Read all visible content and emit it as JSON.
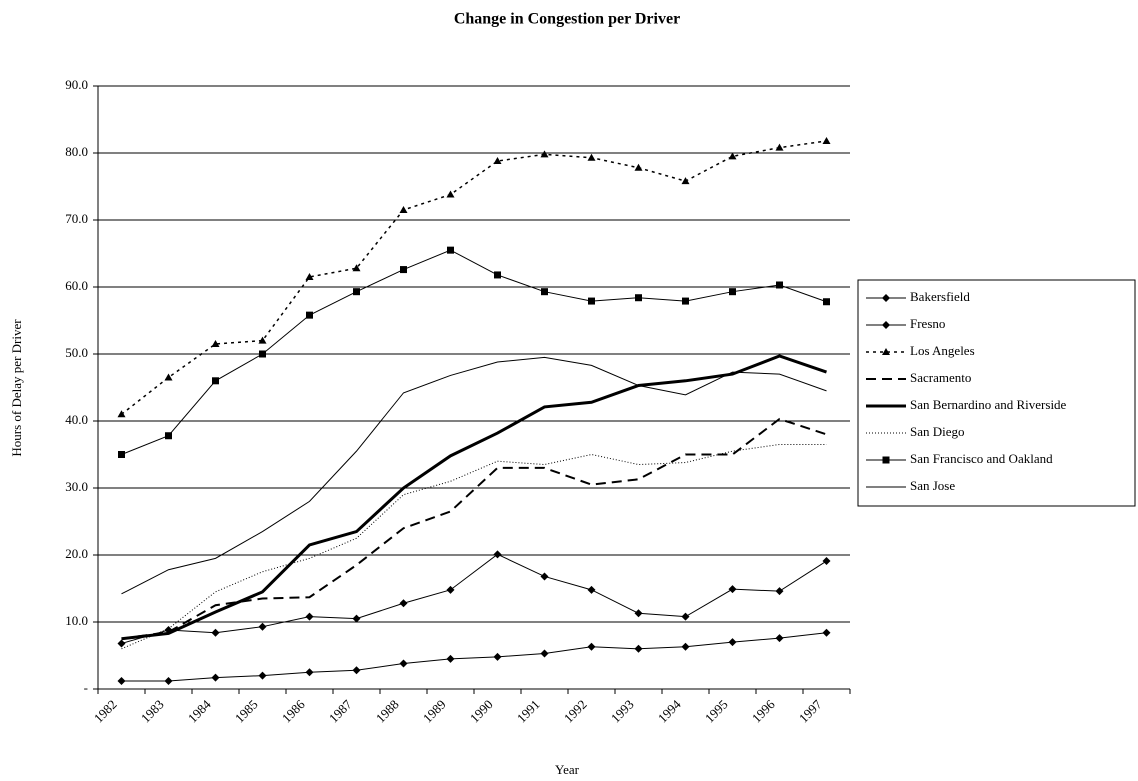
{
  "chart_data": {
    "type": "line",
    "title": "Change in Congestion per Driver",
    "x_label": "Year",
    "y_label": "Hours of Delay per Driver",
    "categories": [
      "1982",
      "1983",
      "1984",
      "1985",
      "1986",
      "1987",
      "1988",
      "1989",
      "1990",
      "1991",
      "1992",
      "1993",
      "1994",
      "1995",
      "1996",
      "1997"
    ],
    "ylim": [
      0,
      90
    ],
    "yticks": [
      {
        "value": 0,
        "label": "-"
      },
      {
        "value": 10,
        "label": "10.0"
      },
      {
        "value": 20,
        "label": "20.0"
      },
      {
        "value": 30,
        "label": "30.0"
      },
      {
        "value": 40,
        "label": "40.0"
      },
      {
        "value": 50,
        "label": "50.0"
      },
      {
        "value": 60,
        "label": "60.0"
      },
      {
        "value": 70,
        "label": "70.0"
      },
      {
        "value": 80,
        "label": "80.0"
      },
      {
        "value": 90,
        "label": "90.0"
      }
    ],
    "grid": true,
    "legend": "right",
    "series": [
      {
        "name": "Bakersfield",
        "color": "#000000",
        "width": 1,
        "dash": "none",
        "marker": "diamond",
        "values": [
          1.2,
          1.2,
          1.7,
          2.0,
          2.5,
          2.8,
          3.8,
          4.5,
          4.8,
          5.3,
          6.3,
          6.0,
          6.3,
          7.0,
          7.6,
          8.4
        ]
      },
      {
        "name": "Fresno",
        "color": "#000000",
        "width": 1,
        "dash": "none",
        "marker": "diamond",
        "values": [
          6.8,
          8.8,
          8.4,
          9.3,
          10.8,
          10.5,
          12.8,
          14.8,
          20.1,
          16.8,
          14.8,
          11.3,
          10.8,
          14.9,
          14.6,
          19.1
        ]
      },
      {
        "name": "Los Angeles",
        "color": "#000000",
        "width": 1.5,
        "dash": "3,4",
        "marker": "triangle",
        "values": [
          41.0,
          46.5,
          51.5,
          52.0,
          61.5,
          62.8,
          71.5,
          73.8,
          78.8,
          79.8,
          79.3,
          77.8,
          75.8,
          79.5,
          80.8,
          81.8
        ]
      },
      {
        "name": "Sacramento",
        "color": "#000000",
        "width": 2,
        "dash": "10,6",
        "marker": "none",
        "values": [
          7.5,
          8.5,
          12.5,
          13.5,
          13.7,
          18.5,
          24.0,
          26.5,
          33.0,
          33.0,
          30.5,
          31.3,
          35.0,
          35.0,
          40.3,
          38.0
        ]
      },
      {
        "name": "San Bernardino and Riverside",
        "color": "#000000",
        "width": 3,
        "dash": "none",
        "marker": "none",
        "values": [
          7.5,
          8.3,
          11.5,
          14.5,
          21.5,
          23.5,
          30.0,
          34.8,
          38.2,
          42.1,
          42.8,
          45.3,
          46.0,
          47.0,
          49.7,
          47.3
        ]
      },
      {
        "name": "San Diego",
        "color": "#000000",
        "width": 1,
        "dash": "1,2",
        "marker": "none",
        "values": [
          6.0,
          9.0,
          14.5,
          17.5,
          19.5,
          22.5,
          29.0,
          31.0,
          34.0,
          33.5,
          35.0,
          33.5,
          33.8,
          35.5,
          36.5,
          36.5
        ]
      },
      {
        "name": "San Francisco and Oakland",
        "color": "#000000",
        "width": 1,
        "dash": "none",
        "marker": "square",
        "values": [
          35.0,
          37.8,
          46.0,
          50.0,
          55.8,
          59.3,
          62.6,
          65.5,
          61.8,
          59.3,
          57.9,
          58.4,
          57.9,
          59.3,
          60.3,
          57.8
        ]
      },
      {
        "name": "San Jose",
        "color": "#000000",
        "width": 1,
        "dash": "none",
        "marker": "none",
        "values": [
          14.2,
          17.8,
          19.5,
          23.5,
          28.0,
          35.5,
          44.2,
          46.8,
          48.8,
          49.5,
          48.3,
          45.3,
          43.9,
          47.3,
          47.0,
          44.5
        ]
      }
    ]
  }
}
